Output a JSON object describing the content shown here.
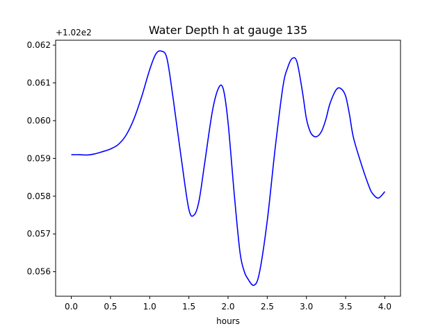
{
  "chart_data": {
    "type": "line",
    "title": "Water Depth h at gauge 135",
    "xlabel": "hours",
    "ylabel": "",
    "y_offset_label": "+1.02e2",
    "xlim": [
      -0.2,
      4.2
    ],
    "ylim": [
      0.05535,
      0.06213
    ],
    "x_ticks": [
      0.0,
      0.5,
      1.0,
      1.5,
      2.0,
      2.5,
      3.0,
      3.5,
      4.0
    ],
    "x_tick_labels": [
      "0.0",
      "0.5",
      "1.0",
      "1.5",
      "2.0",
      "2.5",
      "3.0",
      "3.5",
      "4.0"
    ],
    "y_ticks": [
      0.056,
      0.057,
      0.058,
      0.059,
      0.06,
      0.061,
      0.062
    ],
    "y_tick_labels": [
      "0.056",
      "0.057",
      "0.058",
      "0.059",
      "0.060",
      "0.061",
      "0.062"
    ],
    "grid": false,
    "series": [
      {
        "color": "#0000ff",
        "x": [
          0.0,
          0.1,
          0.2,
          0.3,
          0.4,
          0.5,
          0.6,
          0.7,
          0.8,
          0.9,
          1.0,
          1.08,
          1.15,
          1.22,
          1.3,
          1.4,
          1.5,
          1.57,
          1.63,
          1.7,
          1.8,
          1.88,
          1.94,
          2.0,
          2.08,
          2.15,
          2.2,
          2.25,
          2.33,
          2.4,
          2.5,
          2.6,
          2.7,
          2.76,
          2.82,
          2.88,
          2.95,
          3.0,
          3.05,
          3.1,
          3.15,
          3.2,
          3.25,
          3.3,
          3.38,
          3.44,
          3.5,
          3.55,
          3.6,
          3.7,
          3.8,
          3.85,
          3.92,
          4.0
        ],
        "y": [
          0.0591,
          0.0591,
          0.05909,
          0.05912,
          0.05918,
          0.05925,
          0.05937,
          0.05962,
          0.06005,
          0.06065,
          0.06135,
          0.06177,
          0.06184,
          0.06165,
          0.06058,
          0.05905,
          0.05765,
          0.05751,
          0.05788,
          0.05885,
          0.06025,
          0.06087,
          0.06083,
          0.05995,
          0.05803,
          0.05655,
          0.05605,
          0.05582,
          0.05564,
          0.05597,
          0.05735,
          0.05925,
          0.0609,
          0.0614,
          0.06165,
          0.06155,
          0.06075,
          0.06005,
          0.0597,
          0.05958,
          0.0596,
          0.05975,
          0.06005,
          0.06045,
          0.06082,
          0.06085,
          0.06065,
          0.06015,
          0.05955,
          0.05885,
          0.05825,
          0.05805,
          0.05795,
          0.05812
        ]
      }
    ]
  }
}
